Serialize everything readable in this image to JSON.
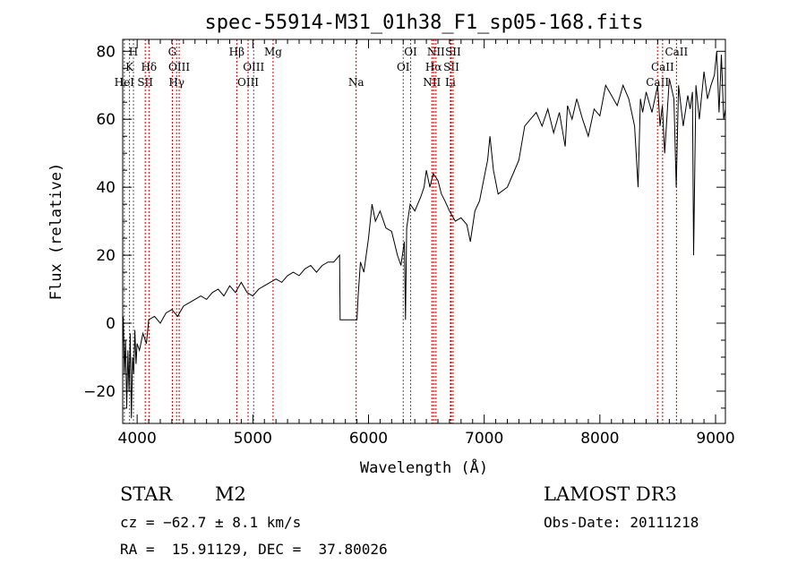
{
  "chart_data": {
    "type": "line",
    "title": "spec-55914-M31_01h38_F1_sp05-168.fits",
    "xlabel": "Wavelength (Å)",
    "ylabel": "Flux (relative)",
    "xlim": [
      3875,
      9085
    ],
    "ylim": [
      -29.5,
      83.5
    ],
    "xticks": [
      4000,
      5000,
      6000,
      7000,
      8000,
      9000
    ],
    "yticks": [
      -20,
      0,
      20,
      40,
      60,
      80
    ],
    "tick_labels_x": [
      "4000",
      "5000",
      "6000",
      "7000",
      "8000",
      "9000"
    ],
    "tick_labels_y": [
      "−20",
      "0",
      "20",
      "40",
      "60",
      "80"
    ],
    "grid": false,
    "series": [
      {
        "name": "spectrum",
        "color": "#000000",
        "x": [
          3880,
          3890,
          3900,
          3910,
          3920,
          3930,
          3940,
          3950,
          3960,
          3970,
          3980,
          3990,
          4000,
          4020,
          4050,
          4080,
          4100,
          4150,
          4200,
          4250,
          4300,
          4350,
          4400,
          4450,
          4500,
          4550,
          4600,
          4650,
          4700,
          4750,
          4800,
          4850,
          4900,
          4950,
          5000,
          5050,
          5100,
          5150,
          5200,
          5250,
          5300,
          5350,
          5400,
          5450,
          5500,
          5550,
          5600,
          5650,
          5700,
          5750,
          5755,
          5900,
          5910,
          5930,
          5960,
          6000,
          6030,
          6060,
          6100,
          6150,
          6200,
          6250,
          6280,
          6310,
          6320,
          6330,
          6360,
          6400,
          6450,
          6480,
          6500,
          6530,
          6560,
          6600,
          6630,
          6660,
          6700,
          6750,
          6800,
          6850,
          6880,
          6920,
          6960,
          7000,
          7030,
          7050,
          7080,
          7120,
          7200,
          7250,
          7300,
          7350,
          7400,
          7450,
          7500,
          7550,
          7600,
          7650,
          7700,
          7720,
          7760,
          7800,
          7850,
          7900,
          7950,
          8000,
          8050,
          8100,
          8150,
          8200,
          8250,
          8300,
          8330,
          8350,
          8370,
          8400,
          8450,
          8500,
          8520,
          8540,
          8560,
          8600,
          8640,
          8660,
          8680,
          8720,
          8760,
          8780,
          8800,
          8810,
          8830,
          8860,
          8900,
          8930,
          8960,
          8990,
          9010,
          9030,
          9050,
          9070,
          9085
        ],
        "y": [
          2,
          -15,
          -5,
          -25,
          -8,
          -20,
          -3,
          -28,
          -10,
          -15,
          -2,
          -12,
          -6,
          -8,
          -3,
          -6,
          1,
          2,
          0,
          3,
          4,
          2,
          5,
          6,
          7,
          8,
          7,
          9,
          10,
          8,
          11,
          9,
          12,
          9,
          8,
          10,
          11,
          12,
          13,
          12,
          14,
          15,
          14,
          16,
          17,
          15,
          17,
          18,
          18,
          20,
          1,
          1,
          8,
          18,
          15,
          25,
          35,
          30,
          33,
          28,
          27,
          20,
          17,
          24,
          1,
          28,
          35,
          33,
          37,
          40,
          45,
          40,
          44,
          42,
          38,
          36,
          33,
          30,
          31,
          29,
          24,
          33,
          36,
          43,
          48,
          55,
          45,
          38,
          40,
          44,
          48,
          58,
          60,
          62,
          58,
          63,
          56,
          62,
          52,
          64,
          60,
          66,
          60,
          55,
          63,
          61,
          70,
          67,
          64,
          70,
          66,
          58,
          40,
          66,
          62,
          68,
          62,
          70,
          58,
          64,
          50,
          72,
          66,
          40,
          70,
          58,
          67,
          63,
          68,
          20,
          70,
          60,
          74,
          66,
          70,
          73,
          80,
          62,
          79,
          60,
          63
        ]
      }
    ],
    "lines": [
      {
        "w": 3934,
        "label": "K",
        "row": 1,
        "color": "#555555"
      },
      {
        "w": 3968,
        "label": "H",
        "row": 0,
        "color": "#555555"
      },
      {
        "w": 3889,
        "label": "HeI",
        "row": 2,
        "color": "#555555"
      },
      {
        "w": 4070,
        "label": "SII",
        "row": 2,
        "color": "#cc0000"
      },
      {
        "w": 4102,
        "label": "Hδ",
        "row": 1,
        "color": "#cc0000"
      },
      {
        "w": 4304,
        "label": "G",
        "row": 0,
        "color": "#cc0000"
      },
      {
        "w": 4341,
        "label": "Hγ",
        "row": 2,
        "color": "#cc0000"
      },
      {
        "w": 4363,
        "label": "OIII",
        "row": 1,
        "color": "#cc0000"
      },
      {
        "w": 4861,
        "label": "Hβ",
        "row": 0,
        "color": "#cc0000"
      },
      {
        "w": 4959,
        "label": "OIII",
        "row": 2,
        "color": "#cc0000"
      },
      {
        "w": 5007,
        "label": "OIII",
        "row": 1,
        "color": "#555555"
      },
      {
        "w": 5175,
        "label": "Mg",
        "row": 0,
        "color": "#cc0000"
      },
      {
        "w": 5893,
        "label": "Na",
        "row": 2,
        "color": "#cc0000"
      },
      {
        "w": 6300,
        "label": "OI",
        "row": 1,
        "color": "#555555"
      },
      {
        "w": 6364,
        "label": "OI",
        "row": 0,
        "color": "#555555"
      },
      {
        "w": 6548,
        "label": "NII",
        "row": 2,
        "color": "#cc0000"
      },
      {
        "w": 6563,
        "label": "Hα",
        "row": 1,
        "color": "#cc0000"
      },
      {
        "w": 6583,
        "label": "NII",
        "row": 0,
        "color": "#cc0000"
      },
      {
        "w": 6708,
        "label": "Li",
        "row": 2,
        "color": "#cc0000"
      },
      {
        "w": 6716,
        "label": "SII",
        "row": 1,
        "color": "#cc0000"
      },
      {
        "w": 6731,
        "label": "SII",
        "row": 0,
        "color": "#cc0000"
      },
      {
        "w": 8498,
        "label": "CaII",
        "row": 2,
        "color": "#cc0000"
      },
      {
        "w": 8542,
        "label": "CaII",
        "row": 1,
        "color": "#cc0000"
      },
      {
        "w": 8662,
        "label": "CaII",
        "row": 0,
        "color": "#cc0000"
      }
    ]
  },
  "info": {
    "class_label": "STAR",
    "subclass": "M2",
    "cz": "cz = −62.7 ± 8.1 km/s",
    "radec": "RA =  15.91129, DEC =  37.80026",
    "survey": "LAMOST DR3",
    "obs_date": "Obs-Date: 20111218"
  }
}
